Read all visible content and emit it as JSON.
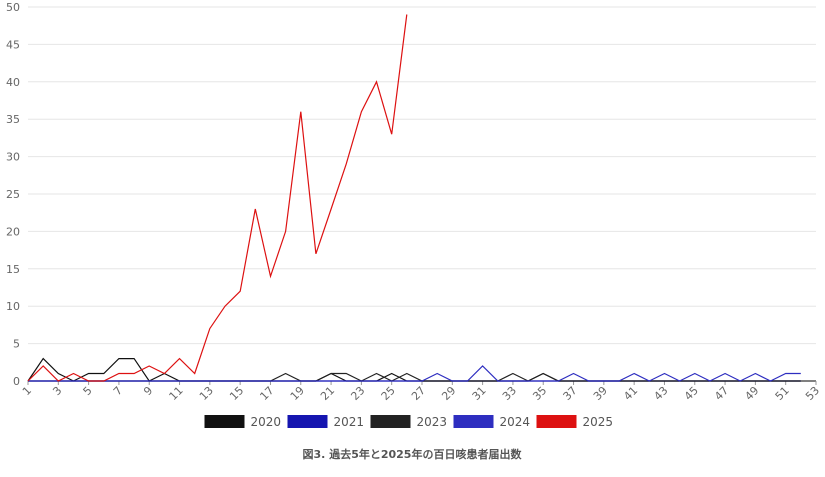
{
  "chart_data": {
    "type": "line",
    "title": "図3. 過去5年と2025年の百日咳患者届出数",
    "x": [
      1,
      2,
      3,
      4,
      5,
      6,
      7,
      8,
      9,
      10,
      11,
      12,
      13,
      14,
      15,
      16,
      17,
      18,
      19,
      20,
      21,
      22,
      23,
      24,
      25,
      26,
      27,
      28,
      29,
      30,
      31,
      32,
      33,
      34,
      35,
      36,
      37,
      38,
      39,
      40,
      41,
      42,
      43,
      44,
      45,
      46,
      47,
      48,
      49,
      50,
      51,
      52,
      53
    ],
    "xlim": [
      1,
      53
    ],
    "xticks": [
      1,
      3,
      5,
      7,
      9,
      11,
      13,
      15,
      17,
      19,
      21,
      23,
      25,
      27,
      29,
      31,
      33,
      35,
      37,
      39,
      41,
      43,
      45,
      47,
      49,
      51,
      53
    ],
    "ylim": [
      0,
      50
    ],
    "yticks": [
      0,
      5,
      10,
      15,
      20,
      25,
      30,
      35,
      40,
      45,
      50
    ],
    "grid": true,
    "legend": "bottom",
    "series": [
      {
        "name": "2020",
        "color": "#111111",
        "values": [
          0,
          3,
          1,
          0,
          1,
          1,
          3,
          3,
          0,
          1,
          0,
          0,
          0,
          0,
          0,
          0,
          0,
          0,
          0,
          0,
          1,
          0,
          0,
          0,
          1,
          0,
          0,
          0,
          0,
          0,
          0,
          0,
          0,
          0,
          1,
          0,
          0,
          0,
          0,
          0,
          0,
          0,
          0,
          0,
          0,
          0,
          0,
          0,
          0,
          0,
          0,
          0,
          null
        ]
      },
      {
        "name": "2021",
        "color": "#1515b0",
        "values": [
          0,
          0,
          0,
          0,
          0,
          0,
          0,
          0,
          0,
          0,
          0,
          0,
          0,
          0,
          0,
          0,
          0,
          0,
          0,
          0,
          0,
          0,
          0,
          0,
          0,
          0,
          0,
          0,
          0,
          0,
          0,
          0,
          0,
          0,
          0,
          0,
          0,
          0,
          0,
          0,
          0,
          0,
          0,
          0,
          0,
          0,
          0,
          0,
          0,
          0,
          0,
          0,
          null
        ]
      },
      {
        "name": "2023",
        "color": "#222222",
        "values": [
          0,
          0,
          0,
          0,
          0,
          0,
          0,
          0,
          0,
          0,
          0,
          0,
          0,
          0,
          0,
          0,
          0,
          1,
          0,
          0,
          1,
          1,
          0,
          1,
          0,
          1,
          0,
          0,
          0,
          0,
          0,
          0,
          1,
          0,
          1,
          0,
          0,
          0,
          0,
          0,
          0,
          0,
          0,
          0,
          0,
          0,
          0,
          0,
          0,
          0,
          0,
          0,
          null
        ]
      },
      {
        "name": "2024",
        "color": "#2e2ec0",
        "values": [
          0,
          0,
          0,
          0,
          0,
          0,
          0,
          0,
          0,
          0,
          0,
          0,
          0,
          0,
          0,
          0,
          0,
          0,
          0,
          0,
          0,
          0,
          0,
          0,
          0,
          0,
          0,
          1,
          0,
          0,
          2,
          0,
          0,
          0,
          0,
          0,
          1,
          0,
          0,
          0,
          1,
          0,
          1,
          0,
          1,
          0,
          1,
          0,
          1,
          0,
          1,
          1,
          null
        ]
      },
      {
        "name": "2025",
        "color": "#dd1111",
        "values": [
          0,
          2,
          0,
          1,
          0,
          0,
          1,
          1,
          2,
          1,
          3,
          1,
          7,
          10,
          12,
          23,
          14,
          20,
          36,
          17,
          23,
          29,
          36,
          40,
          33,
          49,
          null,
          null,
          null,
          null,
          null,
          null,
          null,
          null,
          null,
          null,
          null,
          null,
          null,
          null,
          null,
          null,
          null,
          null,
          null,
          null,
          null,
          null,
          null,
          null,
          null,
          null,
          null
        ]
      }
    ]
  }
}
